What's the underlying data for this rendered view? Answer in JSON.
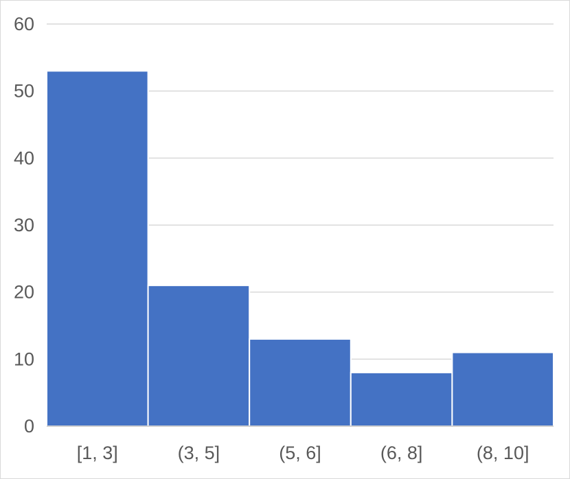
{
  "chart_data": {
    "type": "bar",
    "title": "",
    "xlabel": "",
    "ylabel": "",
    "categories": [
      "[1, 3]",
      "(3, 5]",
      "(5, 6]",
      "(6, 8]",
      "(8, 10]"
    ],
    "values": [
      53,
      21,
      13,
      8,
      11
    ],
    "ylim": [
      0,
      60
    ],
    "yticks": [
      0,
      10,
      20,
      30,
      40,
      50,
      60
    ],
    "grid": true,
    "legend": "none",
    "bar_color": "#4472c4",
    "grid_color": "#d9d9d9",
    "text_color": "#595959"
  }
}
